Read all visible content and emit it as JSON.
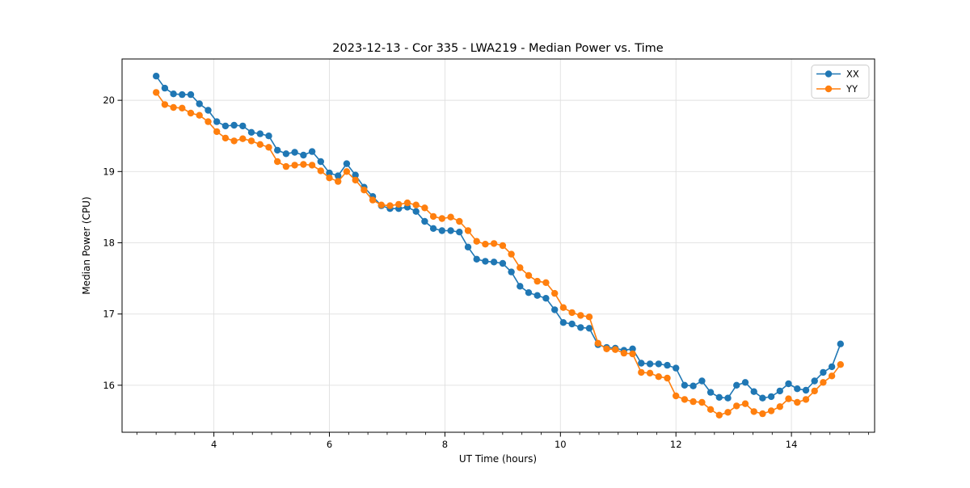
{
  "chart_data": {
    "type": "line",
    "title": "2023-12-13 - Cor 335 - LWA219 - Median Power vs. Time",
    "xlabel": "UT Time (hours)",
    "ylabel": "Median Power (CPU)",
    "xlim": [
      2.41,
      15.44
    ],
    "ylim": [
      15.34,
      20.58
    ],
    "x_major_ticks": [
      4,
      6,
      8,
      10,
      12,
      14
    ],
    "x_minor_tick_step": 0.33333,
    "y_major_ticks": [
      16,
      17,
      18,
      19,
      20
    ],
    "grid": true,
    "legend_position": "upper right",
    "x_start": 3.0,
    "x_step": 0.15,
    "series": [
      {
        "name": "XX",
        "color": "#1f77b4",
        "values": [
          20.34,
          20.17,
          20.09,
          20.08,
          20.08,
          19.95,
          19.86,
          19.7,
          19.64,
          19.65,
          19.64,
          19.55,
          19.53,
          19.5,
          19.3,
          19.25,
          19.27,
          19.23,
          19.28,
          19.14,
          18.98,
          18.94,
          19.11,
          18.95,
          18.78,
          18.65,
          18.52,
          18.48,
          18.48,
          18.5,
          18.44,
          18.3,
          18.2,
          18.17,
          18.17,
          18.15,
          17.94,
          17.77,
          17.74,
          17.73,
          17.71,
          17.59,
          17.39,
          17.3,
          17.26,
          17.22,
          17.06,
          16.88,
          16.86,
          16.81,
          16.8,
          16.57,
          16.53,
          16.52,
          16.49,
          16.51,
          16.31,
          16.3,
          16.3,
          16.28,
          16.24,
          16.0,
          15.99,
          16.06,
          15.9,
          15.83,
          15.82,
          16.0,
          16.04,
          15.91,
          15.82,
          15.84,
          15.92,
          16.02,
          15.95,
          15.93,
          16.06,
          16.18,
          16.26,
          16.58
        ]
      },
      {
        "name": "YY",
        "color": "#ff7f0e",
        "values": [
          20.11,
          19.94,
          19.9,
          19.89,
          19.82,
          19.79,
          19.7,
          19.56,
          19.47,
          19.43,
          19.46,
          19.43,
          19.38,
          19.34,
          19.14,
          19.07,
          19.09,
          19.1,
          19.09,
          19.01,
          18.91,
          18.86,
          19.0,
          18.88,
          18.74,
          18.6,
          18.53,
          18.52,
          18.54,
          18.56,
          18.53,
          18.49,
          18.37,
          18.34,
          18.36,
          18.3,
          18.17,
          18.02,
          17.98,
          17.99,
          17.96,
          17.84,
          17.65,
          17.54,
          17.46,
          17.44,
          17.29,
          17.09,
          17.02,
          16.98,
          16.96,
          16.59,
          16.51,
          16.5,
          16.45,
          16.44,
          16.18,
          16.17,
          16.12,
          16.1,
          15.85,
          15.8,
          15.77,
          15.76,
          15.66,
          15.58,
          15.62,
          15.71,
          15.74,
          15.63,
          15.6,
          15.64,
          15.7,
          15.81,
          15.76,
          15.8,
          15.92,
          16.04,
          16.13,
          16.29
        ]
      }
    ]
  },
  "style": {
    "grid_color": "#e0e0e0",
    "spine_color": "#000000",
    "legend_border_color": "#cccccc",
    "background_color": "#ffffff"
  }
}
